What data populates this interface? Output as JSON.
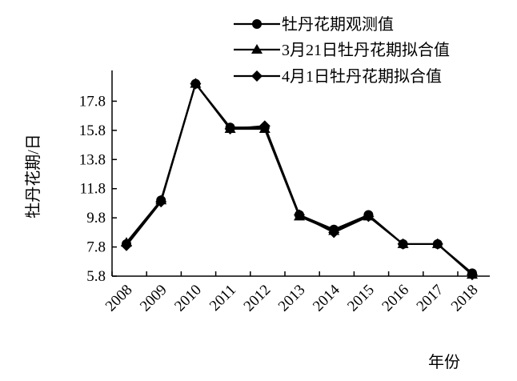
{
  "chart_data": {
    "type": "line",
    "title": "",
    "xlabel": "年份",
    "ylabel": "牡丹花期/日",
    "categories": [
      "2008",
      "2009",
      "2010",
      "2011",
      "2012",
      "2013",
      "2014",
      "2015",
      "2016",
      "2017",
      "2018"
    ],
    "y_ticks": [
      "5.8",
      "7.8",
      "9.8",
      "11.8",
      "13.8",
      "15.8",
      "17.8"
    ],
    "ylim": [
      5.8,
      19.8
    ],
    "grid": false,
    "legend_position": "top-right",
    "series": [
      {
        "name": "牡丹花期观测值",
        "marker": "circle",
        "values": [
          8.0,
          11.0,
          19.0,
          16.0,
          16.0,
          10.0,
          9.0,
          10.0,
          8.0,
          8.0,
          6.0
        ]
      },
      {
        "name": "3月21日牡丹花期拟合值",
        "marker": "triangle",
        "values": [
          8.1,
          11.0,
          19.0,
          15.9,
          15.9,
          9.9,
          8.9,
          9.9,
          8.0,
          8.0,
          5.9
        ]
      },
      {
        "name": "4月1日牡丹花期拟合值",
        "marker": "diamond",
        "values": [
          7.9,
          10.9,
          19.0,
          15.9,
          16.1,
          10.0,
          8.8,
          9.9,
          8.0,
          8.0,
          5.9
        ]
      }
    ]
  }
}
